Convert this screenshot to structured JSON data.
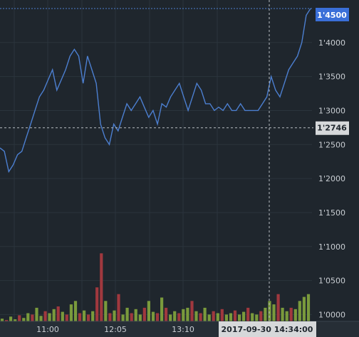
{
  "chart_data": {
    "type": "line",
    "x_ticks": [
      "11:00",
      "12:05",
      "13:10"
    ],
    "y_ticks": [
      "1'4000",
      "1'3500",
      "1'3000",
      "1'2500",
      "1'2000",
      "1'1500",
      "1'1000",
      "1'0500",
      "1'0000"
    ],
    "y_tick_values": [
      1.4,
      1.35,
      1.3,
      1.25,
      1.2,
      1.15,
      1.1,
      1.05,
      1.0
    ],
    "ylim": [
      0.99,
      1.4625
    ],
    "price": {
      "values": [
        1.245,
        1.24,
        1.21,
        1.22,
        1.235,
        1.24,
        1.26,
        1.28,
        1.3,
        1.32,
        1.33,
        1.345,
        1.36,
        1.33,
        1.345,
        1.36,
        1.38,
        1.39,
        1.38,
        1.34,
        1.38,
        1.36,
        1.34,
        1.28,
        1.26,
        1.25,
        1.28,
        1.27,
        1.29,
        1.31,
        1.3,
        1.31,
        1.32,
        1.305,
        1.29,
        1.3,
        1.28,
        1.31,
        1.305,
        1.32,
        1.33,
        1.34,
        1.32,
        1.3,
        1.32,
        1.34,
        1.33,
        1.31,
        1.31,
        1.3,
        1.305,
        1.3,
        1.31,
        1.3,
        1.3,
        1.31,
        1.3,
        1.3,
        1.3,
        1.3,
        1.31,
        1.32,
        1.35,
        1.33,
        1.32,
        1.34,
        1.36,
        1.37,
        1.38,
        1.4,
        1.44,
        1.45
      ],
      "color": "#4c7fd0"
    },
    "current_price": {
      "label": "1'4500",
      "value": 1.45
    },
    "crosshair": {
      "price_label": "1'2746",
      "price_value": 1.2746,
      "time_label": "2017-09-30 14:34:00"
    },
    "volume": {
      "values": [
        0.004,
        0.002,
        0.007,
        0.003,
        0.009,
        0.005,
        0.012,
        0.01,
        0.02,
        0.008,
        0.015,
        0.012,
        0.018,
        0.022,
        0.014,
        0.01,
        0.025,
        0.03,
        0.012,
        0.016,
        0.01,
        0.015,
        0.05,
        0.1,
        0.03,
        0.012,
        0.016,
        0.04,
        0.01,
        0.02,
        0.012,
        0.018,
        0.01,
        0.02,
        0.03,
        0.014,
        0.012,
        0.035,
        0.02,
        0.01,
        0.015,
        0.012,
        0.018,
        0.02,
        0.03,
        0.015,
        0.012,
        0.02,
        0.01,
        0.015,
        0.012,
        0.018,
        0.01,
        0.012,
        0.016,
        0.01,
        0.014,
        0.02,
        0.012,
        0.01,
        0.015,
        0.02,
        0.03,
        0.025,
        0.04,
        0.02,
        0.015,
        0.02,
        0.018,
        0.03,
        0.036,
        0.04
      ],
      "up": [
        1,
        0,
        1,
        1,
        0,
        1,
        1,
        0,
        1,
        1,
        0,
        1,
        1,
        0,
        1,
        0,
        1,
        1,
        0,
        1,
        0,
        1,
        0,
        0,
        1,
        0,
        1,
        0,
        1,
        1,
        0,
        1,
        1,
        0,
        1,
        1,
        0,
        1,
        0,
        1,
        1,
        0,
        1,
        1,
        0,
        1,
        0,
        1,
        1,
        0,
        1,
        0,
        1,
        1,
        0,
        1,
        1,
        0,
        1,
        1,
        0,
        1,
        1,
        1,
        0,
        1,
        1,
        0,
        1,
        1,
        1,
        1
      ],
      "up_color": "#7a9a3c",
      "down_color": "#a0383e"
    }
  }
}
